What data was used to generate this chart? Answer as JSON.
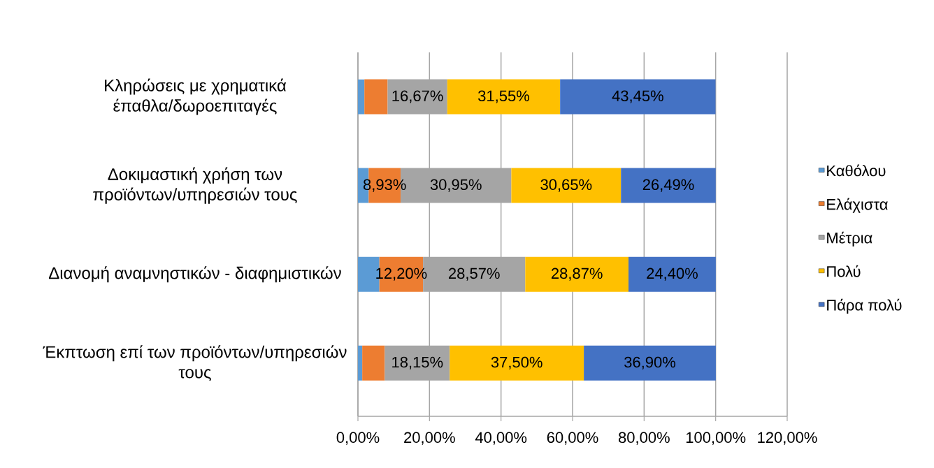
{
  "chart_data": {
    "type": "bar",
    "orientation": "horizontal",
    "stacked": true,
    "categories": [
      "Κληρώσεις με χρηματικά έπαθλα/δωροεπιταγές",
      "Δοκιμαστική χρήση των προϊόντων/υπηρεσιών τους",
      "Διανομή αναμνηστικών - διαφημιστικών",
      "Έκπτωση επί των προϊόντων/υπηρεσιών τους"
    ],
    "series": [
      {
        "name": "Καθόλου",
        "color": "#5b9bd5",
        "values": [
          1.8,
          3.0,
          6.0,
          1.2
        ]
      },
      {
        "name": "Ελάχιστα",
        "color": "#ed7d31",
        "values": [
          6.5,
          8.93,
          12.2,
          6.3
        ],
        "value_labels": [
          null,
          "8,93%",
          "12,20%",
          null
        ]
      },
      {
        "name": "Μέτρια",
        "color": "#a5a5a5",
        "values": [
          16.67,
          30.95,
          28.57,
          18.15
        ],
        "value_labels": [
          "16,67%",
          "30,95%",
          "28,57%",
          "18,15%"
        ]
      },
      {
        "name": "Πολύ",
        "color": "#ffc000",
        "values": [
          31.55,
          30.65,
          28.87,
          37.5
        ],
        "value_labels": [
          "31,55%",
          "30,65%",
          "28,87%",
          "37,50%"
        ]
      },
      {
        "name": "Πάρα πολύ",
        "color": "#4472c4",
        "values": [
          43.45,
          26.49,
          24.4,
          36.9
        ],
        "value_labels": [
          "43,45%",
          "26,49%",
          "24,40%",
          "36,90%"
        ]
      }
    ],
    "xlim": [
      0,
      120
    ],
    "xticks": [
      {
        "value": 0,
        "label": "0,00%"
      },
      {
        "value": 20,
        "label": "20,00%"
      },
      {
        "value": 40,
        "label": "40,00%"
      },
      {
        "value": 60,
        "label": "60,00%"
      },
      {
        "value": 80,
        "label": "80,00%"
      },
      {
        "value": 100,
        "label": "100,00%"
      },
      {
        "value": 120,
        "label": "120,00%"
      }
    ],
    "grid": "x",
    "legend": "right"
  }
}
